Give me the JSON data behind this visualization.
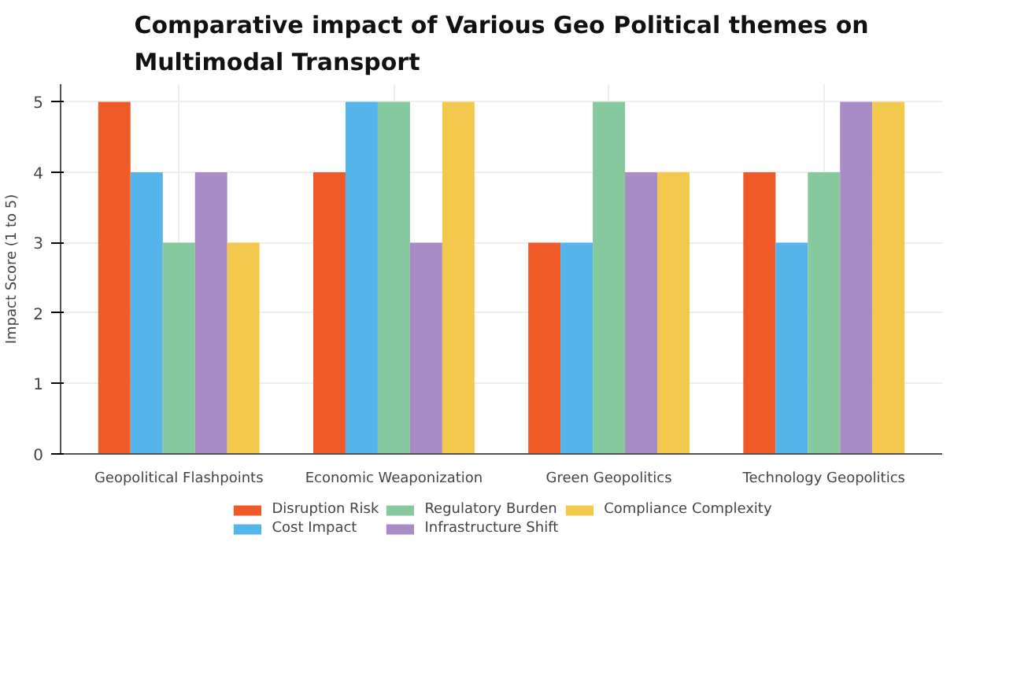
{
  "chart_data": {
    "type": "bar",
    "title": "Comparative impact of Various Geo Political themes on\nMultimodal Transport",
    "ylabel": "Impact Score (1 to 5)",
    "categories": [
      "Geopolitical Flashpoints",
      "Economic Weaponization",
      "Green Geopolitics",
      "Technology Geopolitics"
    ],
    "series": [
      {
        "name": "Disruption Risk",
        "color": "#f05a28",
        "values": [
          5,
          4,
          3,
          4
        ]
      },
      {
        "name": "Cost Impact",
        "color": "#55b4ea",
        "values": [
          4,
          5,
          3,
          3
        ]
      },
      {
        "name": "Regulatory Burden",
        "color": "#86c99e",
        "values": [
          3,
          5,
          5,
          4
        ]
      },
      {
        "name": "Infrastructure Shift",
        "color": "#a98bc6",
        "values": [
          4,
          3,
          4,
          5
        ]
      },
      {
        "name": "Compliance Complexity",
        "color": "#f2c94c",
        "values": [
          3,
          5,
          4,
          5
        ]
      }
    ],
    "ylim": [
      0,
      5.25
    ],
    "yticks": [
      0,
      1,
      2,
      3,
      4,
      5
    ],
    "grid": true,
    "legend": "bottom"
  }
}
